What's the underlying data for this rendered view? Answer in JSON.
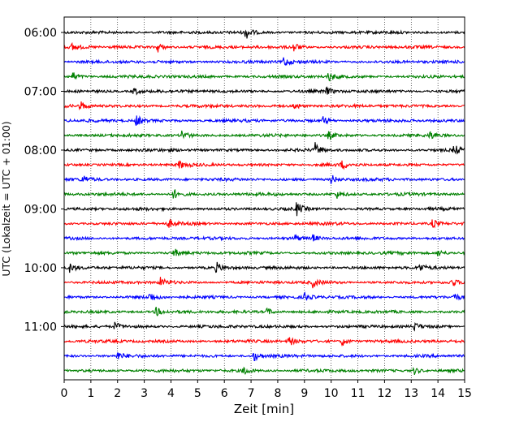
{
  "chart_data": {
    "type": "line",
    "title": "",
    "xlabel": "Zeit  [min]",
    "ylabel": "UTC (Lokalzeit = UTC + 01:00)",
    "xlim": [
      0,
      15
    ],
    "x_ticks": [
      "0",
      "1",
      "2",
      "3",
      "4",
      "5",
      "6",
      "7",
      "8",
      "9",
      "10",
      "11",
      "12",
      "13",
      "14",
      "15"
    ],
    "y_ticks": [
      {
        "row": 0,
        "label": "06:00"
      },
      {
        "row": 4,
        "label": "07:00"
      },
      {
        "row": 8,
        "label": "08:00"
      },
      {
        "row": 12,
        "label": "09:00"
      },
      {
        "row": 16,
        "label": "10:00"
      },
      {
        "row": 20,
        "label": "11:00"
      }
    ],
    "grid": "vertical dotted",
    "colors": [
      "#000000",
      "#ff0000",
      "#0000ff",
      "#008000"
    ],
    "rows": [
      {
        "start": "06:00",
        "events": [
          [
            6.8,
            2.5
          ]
        ]
      },
      {
        "start": "06:15",
        "events": [
          [
            0.3,
            1.5
          ],
          [
            3.5,
            2.0
          ],
          [
            8.6,
            1.8
          ]
        ]
      },
      {
        "start": "06:30",
        "events": [
          [
            8.2,
            2.2
          ]
        ]
      },
      {
        "start": "06:45",
        "events": [
          [
            0.3,
            1.8
          ],
          [
            9.9,
            2.0
          ]
        ]
      },
      {
        "start": "07:00",
        "events": [
          [
            2.6,
            1.6
          ],
          [
            9.8,
            1.5
          ]
        ]
      },
      {
        "start": "07:15",
        "events": [
          [
            0.6,
            2.0
          ],
          [
            8.6,
            1.6
          ]
        ]
      },
      {
        "start": "07:30",
        "events": [
          [
            2.7,
            2.2
          ],
          [
            9.7,
            1.6
          ]
        ]
      },
      {
        "start": "07:45",
        "events": [
          [
            4.4,
            2.0
          ],
          [
            9.9,
            1.5
          ],
          [
            13.7,
            1.5
          ]
        ]
      },
      {
        "start": "08:00",
        "events": [
          [
            9.4,
            2.5
          ],
          [
            14.6,
            2.0
          ]
        ]
      },
      {
        "start": "08:15",
        "events": [
          [
            4.3,
            1.5
          ],
          [
            10.4,
            1.5
          ]
        ]
      },
      {
        "start": "08:30",
        "events": [
          [
            0.7,
            1.5
          ],
          [
            10.0,
            2.0
          ]
        ]
      },
      {
        "start": "08:45",
        "events": [
          [
            4.1,
            2.0
          ],
          [
            10.2,
            1.5
          ]
        ]
      },
      {
        "start": "09:00",
        "events": [
          [
            8.7,
            2.5
          ]
        ]
      },
      {
        "start": "09:15",
        "events": [
          [
            3.9,
            1.5
          ],
          [
            13.8,
            2.0
          ]
        ]
      },
      {
        "start": "09:30",
        "events": [
          [
            8.6,
            1.6
          ],
          [
            9.3,
            1.5
          ]
        ]
      },
      {
        "start": "09:45",
        "events": [
          [
            4.1,
            1.8
          ],
          [
            14.0,
            1.5
          ]
        ]
      },
      {
        "start": "10:00",
        "events": [
          [
            0.2,
            1.6
          ],
          [
            5.7,
            2.0
          ],
          [
            13.3,
            1.5
          ]
        ]
      },
      {
        "start": "10:15",
        "events": [
          [
            3.6,
            1.8
          ],
          [
            9.3,
            1.8
          ],
          [
            14.5,
            1.5
          ]
        ]
      },
      {
        "start": "10:30",
        "events": [
          [
            3.2,
            2.0
          ],
          [
            9.0,
            1.6
          ],
          [
            14.6,
            1.5
          ]
        ]
      },
      {
        "start": "10:45",
        "events": [
          [
            3.4,
            2.0
          ],
          [
            7.6,
            1.5
          ]
        ]
      },
      {
        "start": "11:00",
        "events": [
          [
            1.9,
            1.6
          ],
          [
            13.1,
            1.5
          ]
        ]
      },
      {
        "start": "11:15",
        "events": [
          [
            8.4,
            2.0
          ],
          [
            10.4,
            1.8
          ]
        ]
      },
      {
        "start": "11:30",
        "events": [
          [
            2.0,
            1.5
          ],
          [
            7.1,
            2.0
          ]
        ]
      },
      {
        "start": "11:45",
        "events": [
          [
            6.7,
            2.0
          ],
          [
            13.1,
            1.5
          ]
        ]
      }
    ]
  }
}
